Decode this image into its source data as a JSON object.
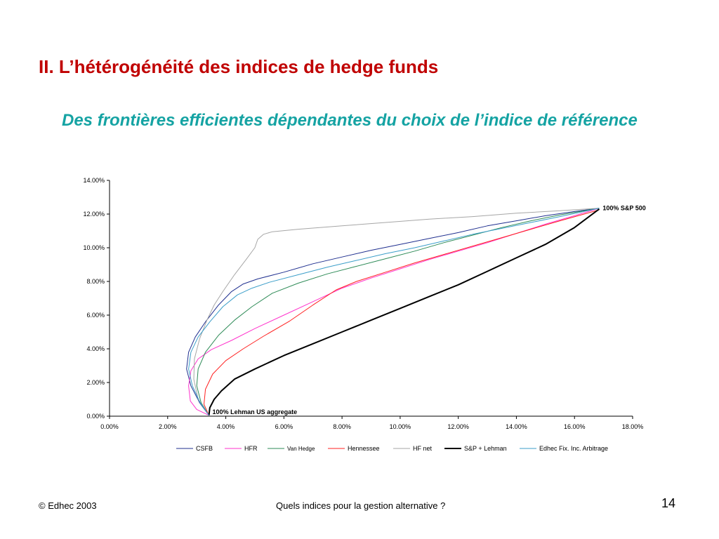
{
  "slide": {
    "title": "II. L’hétérogénéité des indices de hedge funds",
    "subtitle": "Des frontières efficientes dépendantes du choix de l’indice de référence"
  },
  "footer": {
    "left": "© Edhec 2003",
    "center": "Quels indices pour la gestion alternative ?",
    "page": "14"
  },
  "chart_data": {
    "type": "line",
    "title": "",
    "xlabel": "",
    "ylabel": "",
    "xlim": [
      0,
      18
    ],
    "ylim": [
      0,
      14
    ],
    "x_ticks": [
      "0.00%",
      "2.00%",
      "4.00%",
      "6.00%",
      "8.00%",
      "10.00%",
      "12.00%",
      "14.00%",
      "16.00%",
      "18.00%"
    ],
    "y_ticks": [
      "0.00%",
      "2.00%",
      "4.00%",
      "6.00%",
      "8.00%",
      "10.00%",
      "12.00%",
      "14.00%"
    ],
    "grid": false,
    "legend_position": "bottom",
    "annotations": [
      {
        "text": "100% S&P 500",
        "x": 16.85,
        "y": 12.35
      },
      {
        "text": "100% Lehman US aggregate",
        "x": 3.42,
        "y": 0.05
      }
    ],
    "series": [
      {
        "name": "CSFB",
        "color": "#1f2f8f",
        "width": 1,
        "points": [
          [
            3.42,
            0.05
          ],
          [
            3.1,
            0.8
          ],
          [
            2.8,
            1.8
          ],
          [
            2.65,
            2.8
          ],
          [
            2.72,
            3.8
          ],
          [
            2.95,
            4.7
          ],
          [
            3.3,
            5.6
          ],
          [
            3.75,
            6.6
          ],
          [
            4.2,
            7.4
          ],
          [
            4.6,
            7.85
          ],
          [
            5.1,
            8.15
          ],
          [
            6.0,
            8.55
          ],
          [
            7.0,
            9.05
          ],
          [
            8.0,
            9.45
          ],
          [
            9.0,
            9.85
          ],
          [
            10.0,
            10.2
          ],
          [
            11.0,
            10.55
          ],
          [
            12.0,
            10.9
          ],
          [
            13.0,
            11.3
          ],
          [
            14.0,
            11.6
          ],
          [
            15.0,
            11.9
          ],
          [
            16.0,
            12.15
          ],
          [
            16.85,
            12.35
          ]
        ]
      },
      {
        "name": "HFR",
        "color": "#ff33cc",
        "width": 1,
        "points": [
          [
            3.42,
            0.05
          ],
          [
            3.0,
            0.4
          ],
          [
            2.78,
            0.9
          ],
          [
            2.72,
            1.8
          ],
          [
            2.8,
            2.7
          ],
          [
            3.05,
            3.4
          ],
          [
            3.5,
            3.95
          ],
          [
            4.2,
            4.5
          ],
          [
            5.0,
            5.2
          ],
          [
            6.0,
            6.0
          ],
          [
            7.0,
            6.8
          ],
          [
            8.0,
            7.6
          ],
          [
            9.0,
            8.2
          ],
          [
            10.0,
            8.75
          ],
          [
            11.0,
            9.3
          ],
          [
            12.0,
            9.8
          ],
          [
            13.0,
            10.3
          ],
          [
            14.0,
            10.85
          ],
          [
            15.0,
            11.4
          ],
          [
            16.0,
            11.9
          ],
          [
            16.85,
            12.35
          ]
        ]
      },
      {
        "name": "Van Hedge",
        "color": "#2e8b57",
        "width": 1,
        "points": [
          [
            3.42,
            0.05
          ],
          [
            3.15,
            0.8
          ],
          [
            3.0,
            1.8
          ],
          [
            3.05,
            2.8
          ],
          [
            3.3,
            3.8
          ],
          [
            3.75,
            4.8
          ],
          [
            4.3,
            5.7
          ],
          [
            4.9,
            6.5
          ],
          [
            5.6,
            7.3
          ],
          [
            6.5,
            7.9
          ],
          [
            7.5,
            8.45
          ],
          [
            8.5,
            8.9
          ],
          [
            9.5,
            9.35
          ],
          [
            10.5,
            9.8
          ],
          [
            11.5,
            10.3
          ],
          [
            12.5,
            10.75
          ],
          [
            13.5,
            11.2
          ],
          [
            14.5,
            11.6
          ],
          [
            15.5,
            11.95
          ],
          [
            16.85,
            12.35
          ]
        ]
      },
      {
        "name": "Hennessee",
        "color": "#ff2020",
        "width": 1,
        "points": [
          [
            3.42,
            0.05
          ],
          [
            3.25,
            0.7
          ],
          [
            3.3,
            1.6
          ],
          [
            3.55,
            2.5
          ],
          [
            4.0,
            3.3
          ],
          [
            4.6,
            4.0
          ],
          [
            5.3,
            4.75
          ],
          [
            6.2,
            5.65
          ],
          [
            7.0,
            6.6
          ],
          [
            7.8,
            7.5
          ],
          [
            8.5,
            8.0
          ],
          [
            9.5,
            8.55
          ],
          [
            10.5,
            9.1
          ],
          [
            11.5,
            9.6
          ],
          [
            12.5,
            10.1
          ],
          [
            13.5,
            10.6
          ],
          [
            14.5,
            11.1
          ],
          [
            15.5,
            11.6
          ],
          [
            16.85,
            12.25
          ]
        ]
      },
      {
        "name": "HF net",
        "color": "#a6a6a6",
        "width": 1,
        "points": [
          [
            3.42,
            0.05
          ],
          [
            3.05,
            1.0
          ],
          [
            2.9,
            2.2
          ],
          [
            2.92,
            3.4
          ],
          [
            3.1,
            4.6
          ],
          [
            3.35,
            5.7
          ],
          [
            3.6,
            6.6
          ],
          [
            3.9,
            7.4
          ],
          [
            4.3,
            8.4
          ],
          [
            4.7,
            9.3
          ],
          [
            5.0,
            10.0
          ],
          [
            5.1,
            10.5
          ],
          [
            5.3,
            10.8
          ],
          [
            5.6,
            10.95
          ],
          [
            6.5,
            11.1
          ],
          [
            8.0,
            11.3
          ],
          [
            9.5,
            11.5
          ],
          [
            11.0,
            11.7
          ],
          [
            12.5,
            11.85
          ],
          [
            14.0,
            12.05
          ],
          [
            15.5,
            12.2
          ],
          [
            16.85,
            12.35
          ]
        ]
      },
      {
        "name": "S&P + Lehman",
        "color": "#000000",
        "width": 2,
        "points": [
          [
            3.42,
            0.05
          ],
          [
            3.45,
            0.5
          ],
          [
            3.6,
            1.0
          ],
          [
            3.85,
            1.5
          ],
          [
            4.3,
            2.2
          ],
          [
            5.0,
            2.8
          ],
          [
            6.0,
            3.6
          ],
          [
            7.0,
            4.3
          ],
          [
            8.0,
            5.0
          ],
          [
            9.0,
            5.7
          ],
          [
            10.0,
            6.4
          ],
          [
            11.0,
            7.1
          ],
          [
            12.0,
            7.8
          ],
          [
            13.0,
            8.6
          ],
          [
            14.0,
            9.4
          ],
          [
            15.0,
            10.2
          ],
          [
            16.0,
            11.2
          ],
          [
            16.85,
            12.3
          ]
        ]
      },
      {
        "name": "Edhec Fix. Inc. Arbitrage",
        "color": "#3b9ec9",
        "width": 1,
        "points": [
          [
            3.42,
            0.05
          ],
          [
            3.12,
            0.8
          ],
          [
            2.85,
            1.8
          ],
          [
            2.72,
            2.8
          ],
          [
            2.8,
            3.8
          ],
          [
            3.05,
            4.7
          ],
          [
            3.45,
            5.6
          ],
          [
            3.9,
            6.5
          ],
          [
            4.4,
            7.2
          ],
          [
            4.9,
            7.6
          ],
          [
            5.5,
            7.95
          ],
          [
            6.5,
            8.4
          ],
          [
            7.5,
            8.85
          ],
          [
            8.5,
            9.25
          ],
          [
            9.5,
            9.65
          ],
          [
            10.5,
            10.0
          ],
          [
            11.5,
            10.4
          ],
          [
            12.5,
            10.8
          ],
          [
            13.5,
            11.15
          ],
          [
            14.5,
            11.5
          ],
          [
            15.5,
            11.85
          ],
          [
            16.85,
            12.35
          ]
        ]
      }
    ]
  }
}
